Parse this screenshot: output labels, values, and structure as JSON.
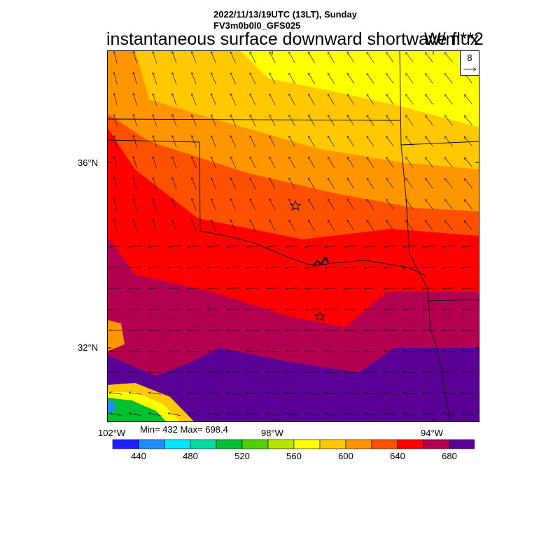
{
  "header": {
    "line1": "2022/11/13/19UTC (13LT), Sunday",
    "line2": "FV3m0b0l0_GFS025",
    "title": "instantaneous surface downward shortwave flux",
    "units": "W/m**2"
  },
  "map": {
    "lat_labels": [
      "36°N",
      "32°N"
    ],
    "lon_labels": [
      "102°W",
      "98°W",
      "94°W"
    ],
    "markers": [
      "star",
      "star"
    ],
    "reference_vector": "8"
  },
  "stats": {
    "text": "Min= 432 Max= 698.4"
  },
  "colorbar": {
    "colors": [
      "#1e1eff",
      "#1e8cff",
      "#00e6ff",
      "#00dca0",
      "#00c030",
      "#50d000",
      "#b4e600",
      "#ffff00",
      "#ffc800",
      "#ff9600",
      "#ff5000",
      "#ff0000",
      "#b40050",
      "#5a0096"
    ],
    "labels": [
      "440",
      "480",
      "520",
      "560",
      "600",
      "640",
      "680"
    ]
  }
}
